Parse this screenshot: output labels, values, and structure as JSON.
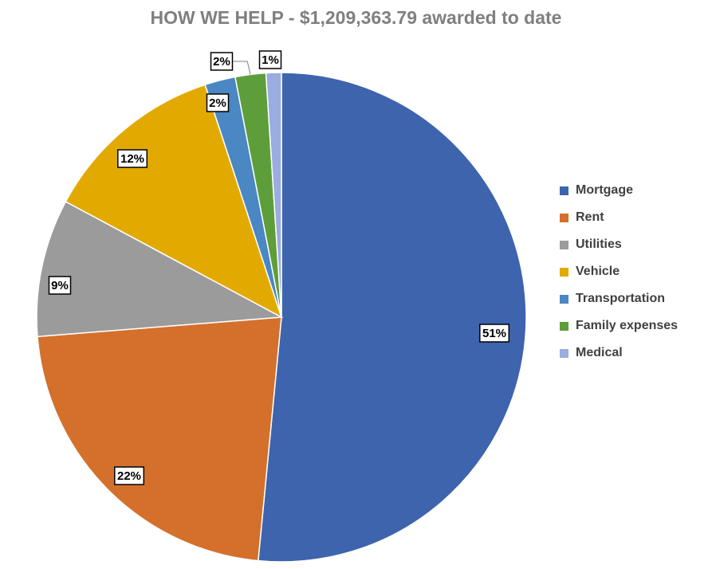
{
  "chart_data": {
    "type": "pie",
    "title": "HOW WE HELP - $1,209,363.79 awarded to date",
    "categories": [
      "Mortgage",
      "Rent",
      "Utilities",
      "Vehicle",
      "Transportation",
      "Family expenses",
      "Medical"
    ],
    "values": [
      51,
      22,
      9,
      12,
      2,
      2,
      1
    ],
    "data_labels": [
      "51%",
      "22%",
      "9%",
      "12%",
      "2%",
      "2%",
      "1%"
    ],
    "colors": [
      "#3d64ad",
      "#d4702b",
      "#9b9b9b",
      "#e2aa00",
      "#4a87c3",
      "#5e9e3a",
      "#9aace0"
    ],
    "legend": "right"
  }
}
